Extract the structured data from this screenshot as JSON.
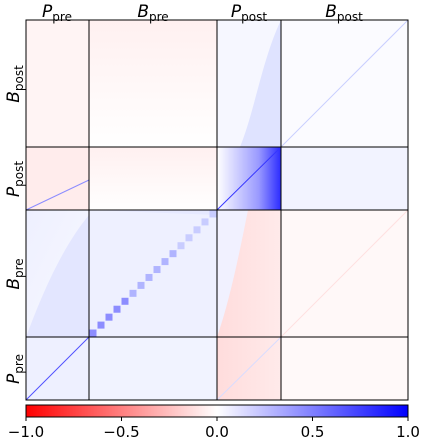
{
  "chart_data": {
    "type": "heatmap",
    "title": "",
    "column_labels": [
      {
        "base": "P",
        "sub": "pre"
      },
      {
        "base": "B",
        "sub": "pre"
      },
      {
        "base": "P",
        "sub": "post"
      },
      {
        "base": "B",
        "sub": "post"
      }
    ],
    "row_labels": [
      {
        "base": "B",
        "sub": "post"
      },
      {
        "base": "P",
        "sub": "post"
      },
      {
        "base": "B",
        "sub": "pre"
      },
      {
        "base": "P",
        "sub": "pre"
      }
    ],
    "colorbar": {
      "min": -1.0,
      "max": 1.0,
      "ticks": [
        -1.0,
        -0.5,
        0.0,
        0.5,
        1.0
      ],
      "tick_labels": [
        "−1.0",
        "−0.5",
        "0.0",
        "0.5",
        "1.0"
      ],
      "colors": {
        "negative": "#ff0000",
        "zero": "#ffffff",
        "positive": "#0000ff"
      }
    },
    "block_fraction": {
      "P": 0.25,
      "B": 0.75
    }
  }
}
